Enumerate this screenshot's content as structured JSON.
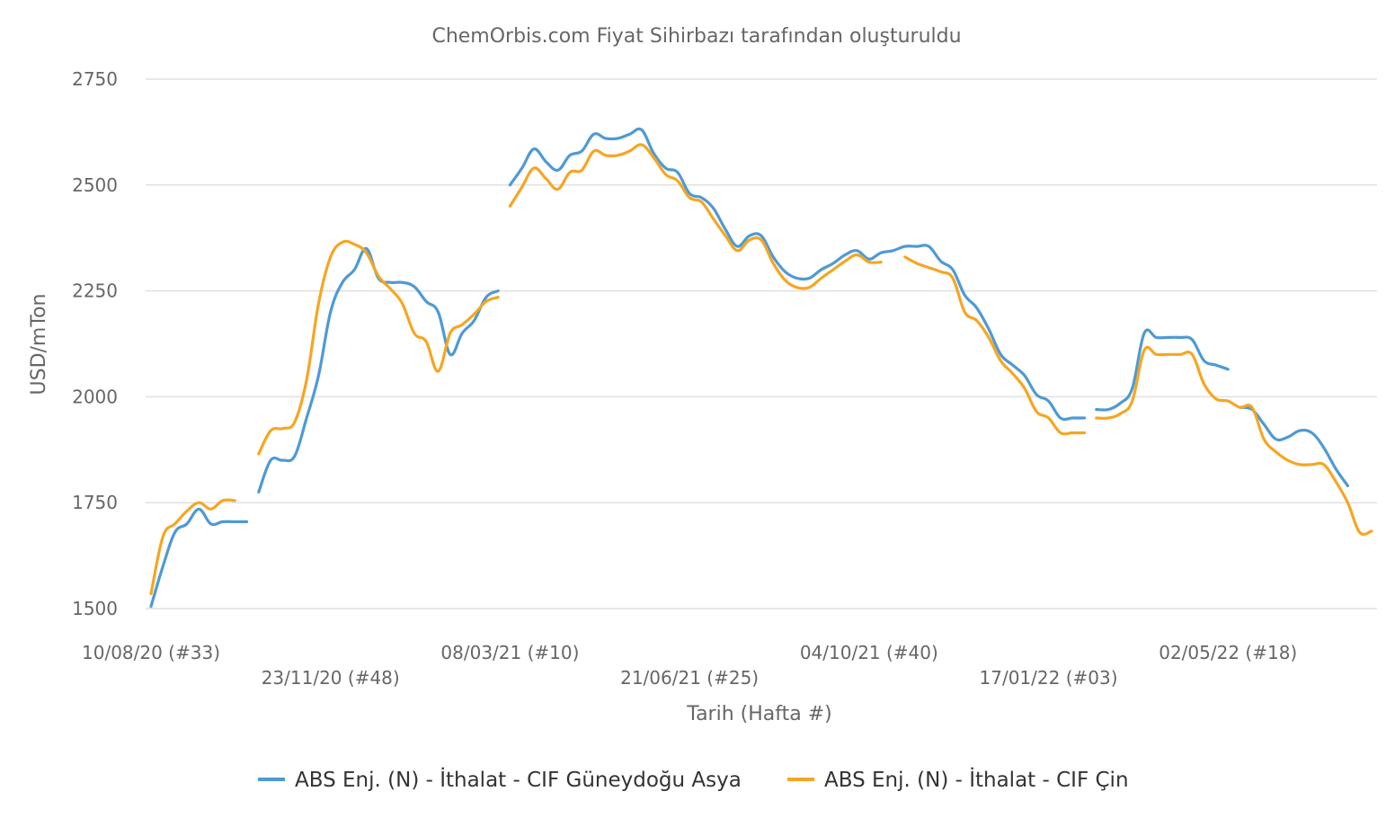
{
  "chart_data": {
    "type": "line",
    "title": "ChemOrbis.com Fiyat Sihirbazı tarafından oluşturuldu",
    "xlabel": "Tarih (Hafta #)",
    "ylabel": "USD/mTon",
    "ylim": [
      1500,
      2750
    ],
    "yticks": [
      1500,
      1750,
      2000,
      2250,
      2500,
      2750
    ],
    "grid": true,
    "legend_position": "bottom",
    "x_start": "10/08/20",
    "x_end": "20/06/22",
    "xticks": [
      {
        "label": "10/08/20 (#33)",
        "date": "2020-08-10"
      },
      {
        "label": "23/11/20 (#48)",
        "date": "2020-11-23"
      },
      {
        "label": "08/03/21 (#10)",
        "date": "2021-03-08"
      },
      {
        "label": "21/06/21 (#25)",
        "date": "2021-06-21"
      },
      {
        "label": "04/10/21 (#40)",
        "date": "2021-10-04"
      },
      {
        "label": "17/01/22 (#03)",
        "date": "2022-01-17"
      },
      {
        "label": "02/05/22 (#18)",
        "date": "2022-05-02"
      }
    ],
    "series": [
      {
        "name": "ABS Enj. (N) - İthalat - CIF Güneydoğu Asya",
        "color": "#4e9ad4",
        "segments": [
          [
            [
              "2020-08-10",
              1505
            ],
            [
              "2020-08-17",
              1600
            ],
            [
              "2020-08-24",
              1680
            ],
            [
              "2020-08-31",
              1700
            ],
            [
              "2020-09-07",
              1735
            ],
            [
              "2020-09-14",
              1700
            ],
            [
              "2020-09-21",
              1705
            ],
            [
              "2020-09-28",
              1705
            ],
            [
              "2020-10-05",
              1705
            ]
          ],
          [
            [
              "2020-10-12",
              1775
            ],
            [
              "2020-10-19",
              1850
            ],
            [
              "2020-10-26",
              1850
            ],
            [
              "2020-11-02",
              1860
            ],
            [
              "2020-11-09",
              1950
            ],
            [
              "2020-11-16",
              2050
            ],
            [
              "2020-11-23",
              2200
            ],
            [
              "2020-11-30",
              2270
            ],
            [
              "2020-12-07",
              2300
            ],
            [
              "2020-12-14",
              2350
            ],
            [
              "2020-12-21",
              2280
            ],
            [
              "2020-12-28",
              2270
            ],
            [
              "2021-01-04",
              2270
            ],
            [
              "2021-01-11",
              2260
            ],
            [
              "2021-01-18",
              2225
            ],
            [
              "2021-01-25",
              2200
            ],
            [
              "2021-02-01",
              2100
            ],
            [
              "2021-02-08",
              2150
            ],
            [
              "2021-02-15",
              2180
            ],
            [
              "2021-02-22",
              2235
            ],
            [
              "2021-03-01",
              2250
            ]
          ],
          [
            [
              "2021-03-08",
              2500
            ],
            [
              "2021-03-15",
              2540
            ],
            [
              "2021-03-22",
              2585
            ],
            [
              "2021-03-29",
              2555
            ],
            [
              "2021-04-05",
              2535
            ],
            [
              "2021-04-12",
              2570
            ],
            [
              "2021-04-19",
              2580
            ],
            [
              "2021-04-26",
              2620
            ],
            [
              "2021-05-03",
              2610
            ],
            [
              "2021-05-10",
              2610
            ],
            [
              "2021-05-17",
              2620
            ],
            [
              "2021-05-24",
              2630
            ],
            [
              "2021-05-31",
              2575
            ],
            [
              "2021-06-07",
              2540
            ],
            [
              "2021-06-14",
              2530
            ],
            [
              "2021-06-21",
              2480
            ],
            [
              "2021-06-28",
              2470
            ],
            [
              "2021-07-05",
              2445
            ],
            [
              "2021-07-12",
              2395
            ],
            [
              "2021-07-19",
              2355
            ],
            [
              "2021-07-26",
              2380
            ],
            [
              "2021-08-02",
              2380
            ],
            [
              "2021-08-09",
              2330
            ],
            [
              "2021-08-16",
              2295
            ],
            [
              "2021-08-23",
              2280
            ],
            [
              "2021-08-30",
              2280
            ],
            [
              "2021-09-06",
              2300
            ],
            [
              "2021-09-13",
              2315
            ],
            [
              "2021-09-20",
              2335
            ],
            [
              "2021-09-27",
              2345
            ],
            [
              "2021-10-04",
              2325
            ],
            [
              "2021-10-11",
              2340
            ],
            [
              "2021-10-18",
              2345
            ],
            [
              "2021-10-25",
              2355
            ],
            [
              "2021-11-01",
              2355
            ],
            [
              "2021-11-08",
              2355
            ],
            [
              "2021-11-15",
              2320
            ],
            [
              "2021-11-22",
              2300
            ],
            [
              "2021-11-29",
              2240
            ],
            [
              "2021-12-06",
              2210
            ],
            [
              "2021-12-13",
              2160
            ],
            [
              "2021-12-20",
              2100
            ],
            [
              "2021-12-27",
              2075
            ],
            [
              "2022-01-03",
              2050
            ],
            [
              "2022-01-10",
              2005
            ],
            [
              "2022-01-17",
              1990
            ],
            [
              "2022-01-24",
              1950
            ],
            [
              "2022-01-31",
              1950
            ],
            [
              "2022-02-07",
              1950
            ]
          ],
          [
            [
              "2022-02-14",
              1970
            ],
            [
              "2022-02-21",
              1970
            ],
            [
              "2022-02-28",
              1985
            ],
            [
              "2022-03-07",
              2020
            ],
            [
              "2022-03-14",
              2150
            ],
            [
              "2022-03-21",
              2140
            ],
            [
              "2022-03-28",
              2140
            ],
            [
              "2022-04-04",
              2140
            ],
            [
              "2022-04-11",
              2135
            ],
            [
              "2022-04-18",
              2085
            ],
            [
              "2022-04-25",
              2075
            ],
            [
              "2022-05-02",
              2065
            ]
          ],
          [
            [
              "2022-05-09",
              1975
            ],
            [
              "2022-05-16",
              1970
            ],
            [
              "2022-05-23",
              1935
            ],
            [
              "2022-05-30",
              1900
            ],
            [
              "2022-06-06",
              1905
            ],
            [
              "2022-06-13",
              1920
            ],
            [
              "2022-06-20",
              1915
            ],
            [
              "2022-06-27",
              1880
            ],
            [
              "2022-07-04",
              1830
            ],
            [
              "2022-07-11",
              1790
            ]
          ]
        ]
      },
      {
        "name": "ABS Enj. (N) - İthalat - CIF Çin",
        "color": "#f5a623",
        "segments": [
          [
            [
              "2020-08-10",
              1535
            ],
            [
              "2020-08-17",
              1670
            ],
            [
              "2020-08-24",
              1700
            ],
            [
              "2020-08-31",
              1730
            ],
            [
              "2020-09-07",
              1750
            ],
            [
              "2020-09-14",
              1735
            ],
            [
              "2020-09-21",
              1755
            ],
            [
              "2020-09-28",
              1755
            ]
          ],
          [
            [
              "2020-10-12",
              1865
            ],
            [
              "2020-10-19",
              1920
            ],
            [
              "2020-10-26",
              1925
            ],
            [
              "2020-11-02",
              1940
            ],
            [
              "2020-11-09",
              2040
            ],
            [
              "2020-11-16",
              2220
            ],
            [
              "2020-11-23",
              2330
            ],
            [
              "2020-11-30",
              2365
            ],
            [
              "2020-12-07",
              2360
            ],
            [
              "2020-12-14",
              2340
            ],
            [
              "2020-12-21",
              2285
            ],
            [
              "2020-12-28",
              2255
            ],
            [
              "2021-01-04",
              2220
            ],
            [
              "2021-01-11",
              2150
            ],
            [
              "2021-01-18",
              2130
            ],
            [
              "2021-01-25",
              2060
            ],
            [
              "2021-02-01",
              2150
            ],
            [
              "2021-02-08",
              2170
            ],
            [
              "2021-02-15",
              2195
            ],
            [
              "2021-02-22",
              2225
            ],
            [
              "2021-03-01",
              2235
            ]
          ],
          [
            [
              "2021-03-08",
              2450
            ],
            [
              "2021-03-15",
              2495
            ],
            [
              "2021-03-22",
              2540
            ],
            [
              "2021-03-29",
              2515
            ],
            [
              "2021-04-05",
              2490
            ],
            [
              "2021-04-12",
              2530
            ],
            [
              "2021-04-19",
              2535
            ],
            [
              "2021-04-26",
              2580
            ],
            [
              "2021-05-03",
              2570
            ],
            [
              "2021-05-10",
              2570
            ],
            [
              "2021-05-17",
              2580
            ],
            [
              "2021-05-24",
              2595
            ],
            [
              "2021-05-31",
              2565
            ],
            [
              "2021-06-07",
              2525
            ],
            [
              "2021-06-14",
              2510
            ],
            [
              "2021-06-21",
              2470
            ],
            [
              "2021-06-28",
              2460
            ],
            [
              "2021-07-05",
              2420
            ],
            [
              "2021-07-12",
              2380
            ],
            [
              "2021-07-19",
              2345
            ],
            [
              "2021-07-26",
              2370
            ],
            [
              "2021-08-02",
              2370
            ],
            [
              "2021-08-09",
              2315
            ],
            [
              "2021-08-16",
              2275
            ],
            [
              "2021-08-23",
              2258
            ],
            [
              "2021-08-30",
              2258
            ],
            [
              "2021-09-06",
              2280
            ],
            [
              "2021-09-13",
              2300
            ],
            [
              "2021-09-20",
              2320
            ],
            [
              "2021-09-27",
              2335
            ],
            [
              "2021-10-04",
              2318
            ],
            [
              "2021-10-11",
              2318
            ]
          ],
          [
            [
              "2021-10-25",
              2330
            ],
            [
              "2021-11-01",
              2315
            ],
            [
              "2021-11-08",
              2305
            ],
            [
              "2021-11-15",
              2295
            ],
            [
              "2021-11-22",
              2280
            ],
            [
              "2021-11-29",
              2200
            ],
            [
              "2021-12-06",
              2180
            ],
            [
              "2021-12-13",
              2140
            ],
            [
              "2021-12-20",
              2085
            ],
            [
              "2021-12-27",
              2055
            ],
            [
              "2022-01-03",
              2020
            ],
            [
              "2022-01-10",
              1965
            ],
            [
              "2022-01-17",
              1950
            ],
            [
              "2022-01-24",
              1915
            ],
            [
              "2022-01-31",
              1915
            ],
            [
              "2022-02-07",
              1915
            ]
          ],
          [
            [
              "2022-02-14",
              1950
            ],
            [
              "2022-02-21",
              1950
            ],
            [
              "2022-02-28",
              1960
            ],
            [
              "2022-03-07",
              1990
            ],
            [
              "2022-03-14",
              2110
            ],
            [
              "2022-03-21",
              2100
            ],
            [
              "2022-03-28",
              2100
            ],
            [
              "2022-04-04",
              2100
            ],
            [
              "2022-04-11",
              2100
            ],
            [
              "2022-04-18",
              2030
            ],
            [
              "2022-04-25",
              1995
            ],
            [
              "2022-05-02",
              1990
            ],
            [
              "2022-05-09",
              1975
            ],
            [
              "2022-05-16",
              1975
            ],
            [
              "2022-05-23",
              1900
            ],
            [
              "2022-05-30",
              1870
            ],
            [
              "2022-06-06",
              1850
            ],
            [
              "2022-06-13",
              1840
            ],
            [
              "2022-06-20",
              1840
            ],
            [
              "2022-06-27",
              1840
            ],
            [
              "2022-07-04",
              1800
            ],
            [
              "2022-07-11",
              1750
            ],
            [
              "2022-07-18",
              1680
            ],
            [
              "2022-07-25",
              1683
            ]
          ]
        ]
      }
    ]
  }
}
